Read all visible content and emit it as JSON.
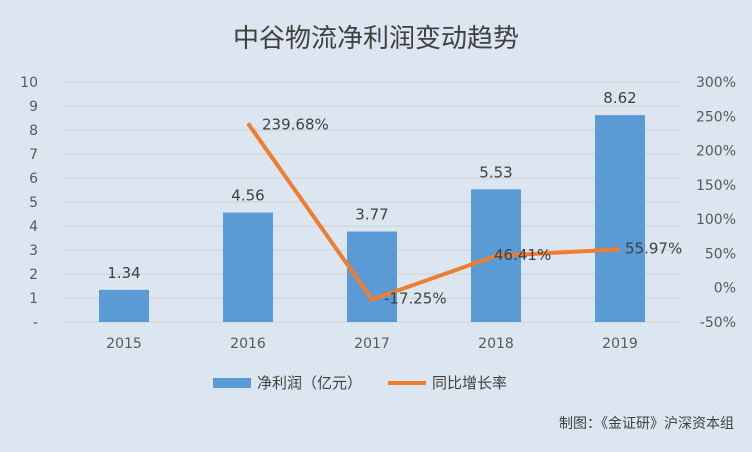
{
  "chart_data": {
    "type": "bar",
    "title": "中谷物流净利润变动趋势",
    "categories": [
      "2015",
      "2016",
      "2017",
      "2018",
      "2019"
    ],
    "series": [
      {
        "name": "净利润（亿元）",
        "type": "bar",
        "axis": "left",
        "color": "#5b9bd5",
        "values": [
          1.34,
          4.56,
          3.77,
          5.53,
          8.62
        ],
        "labels": [
          "1.34",
          "4.56",
          "3.77",
          "5.53",
          "8.62"
        ]
      },
      {
        "name": "同比增长率",
        "type": "line",
        "axis": "right",
        "color": "#ed7d31",
        "values": [
          null,
          239.68,
          -17.25,
          46.41,
          55.97
        ],
        "labels": [
          "",
          "239.68%",
          "-17.25%",
          "46.41%",
          "55.97%"
        ]
      }
    ],
    "y_left": {
      "ylim": [
        0,
        10
      ],
      "ticks": [
        0,
        1,
        2,
        3,
        4,
        5,
        6,
        7,
        8,
        9,
        10
      ],
      "tick_labels": [
        "-",
        "1",
        "2",
        "3",
        "4",
        "5",
        "6",
        "7",
        "8",
        "9",
        "10"
      ]
    },
    "y_right": {
      "ylim": [
        -50,
        300
      ],
      "ticks": [
        -50,
        0,
        50,
        100,
        150,
        200,
        250,
        300
      ],
      "tick_labels": [
        "-50%",
        "0%",
        "50%",
        "100%",
        "150%",
        "200%",
        "250%",
        "300%"
      ]
    },
    "grid": true,
    "legend": "bottom",
    "source_note": "制图：《金证研》沪深资本组"
  },
  "colors": {
    "background": "#dce6f1",
    "grid": "#d0d0d0",
    "text": "#404040"
  }
}
